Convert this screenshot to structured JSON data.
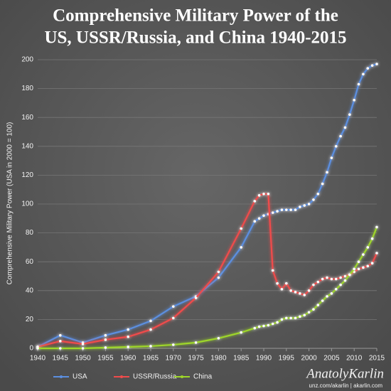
{
  "chart_data": {
    "type": "line",
    "title": [
      "Comprehensive Military Power of the",
      "US, USSR/Russia, and China 1940-2015"
    ],
    "y_label": "Comprehensive Military Power (USA in 2000 = 100)",
    "watermark": "AnatolyKarlin",
    "watermark_sub": "unz.com/akarlin | akarlin.com",
    "x": [
      1940,
      1945,
      1950,
      1955,
      1960,
      1965,
      1970,
      1975,
      1980,
      1985,
      1988,
      1989,
      1990,
      1991,
      1992,
      1993,
      1994,
      1995,
      1996,
      1997,
      1998,
      1999,
      2000,
      2001,
      2002,
      2003,
      2004,
      2005,
      2006,
      2007,
      2008,
      2009,
      2010,
      2011,
      2012,
      2013,
      2014,
      2015
    ],
    "series": [
      {
        "name": "USA",
        "color": "#5b8fe0",
        "values": [
          1,
          9,
          4,
          9,
          13,
          19,
          29,
          36,
          49,
          70,
          88,
          90,
          92,
          93,
          94,
          95,
          96,
          96,
          96,
          96,
          98,
          99,
          100,
          103,
          107,
          114,
          122,
          132,
          140,
          147,
          153,
          162,
          172,
          183,
          190,
          194,
          196,
          197
        ]
      },
      {
        "name": "USSR/Russia",
        "color": "#f04b4b",
        "values": [
          1,
          5,
          3,
          6,
          8,
          13,
          21,
          35,
          53,
          83,
          102,
          106,
          107,
          107,
          54,
          45,
          41,
          45,
          40,
          39,
          38,
          37,
          40,
          44,
          46,
          48,
          49,
          48,
          48,
          49,
          50,
          51,
          53,
          55,
          56,
          57,
          59,
          66
        ]
      },
      {
        "name": "China",
        "color": "#9ed62a",
        "values": [
          0,
          0,
          0,
          0.5,
          1,
          1.5,
          2.5,
          4,
          7,
          11,
          14,
          15,
          15.5,
          16,
          17,
          18,
          20,
          21,
          21,
          21,
          22,
          23,
          25,
          27,
          30,
          33,
          36,
          38,
          41,
          44,
          47,
          51,
          55,
          60,
          65,
          70,
          76,
          84
        ]
      }
    ],
    "xlim": [
      1940,
      2015
    ],
    "xticks": [
      1940,
      1945,
      1950,
      1955,
      1960,
      1965,
      1970,
      1975,
      1980,
      1985,
      1990,
      1995,
      2000,
      2005,
      2010,
      2015
    ],
    "ylim": [
      0,
      200
    ],
    "yticks": [
      0,
      20,
      40,
      60,
      80,
      100,
      120,
      140,
      160,
      180,
      200
    ],
    "grid": true,
    "legend": "bottom"
  }
}
